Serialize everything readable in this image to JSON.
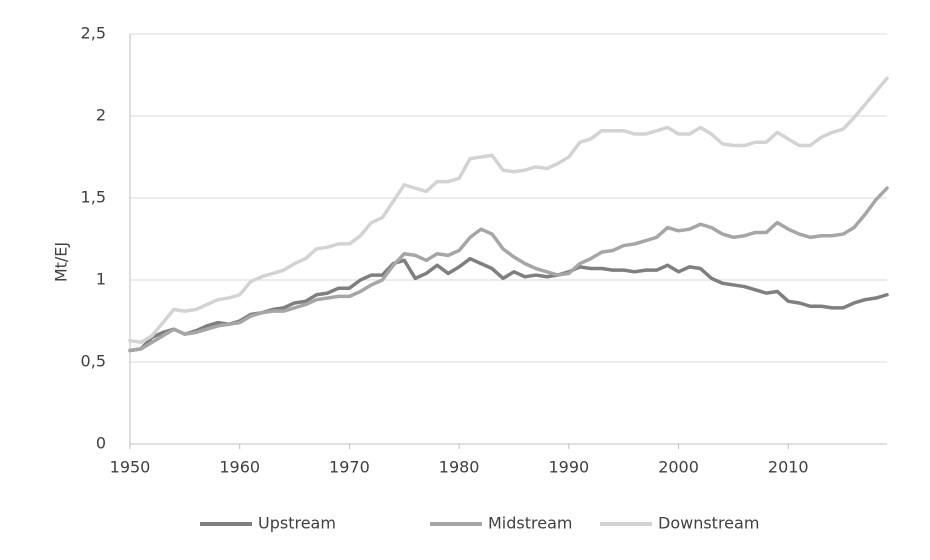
{
  "chart_data": {
    "type": "line",
    "y_label": "Mt/EJ",
    "x": [
      1950,
      1951,
      1952,
      1953,
      1954,
      1955,
      1956,
      1957,
      1958,
      1959,
      1960,
      1961,
      1962,
      1963,
      1964,
      1965,
      1966,
      1967,
      1968,
      1969,
      1970,
      1971,
      1972,
      1973,
      1974,
      1975,
      1976,
      1977,
      1978,
      1979,
      1980,
      1981,
      1982,
      1983,
      1984,
      1985,
      1986,
      1987,
      1988,
      1989,
      1990,
      1991,
      1992,
      1993,
      1994,
      1995,
      1996,
      1997,
      1998,
      1999,
      2000,
      2001,
      2002,
      2003,
      2004,
      2005,
      2006,
      2007,
      2008,
      2009,
      2010,
      2011,
      2012,
      2013,
      2014,
      2015,
      2016,
      2017,
      2018,
      2019
    ],
    "series": [
      {
        "name": "Upstream",
        "color": "#7f7f7f",
        "values": [
          0.57,
          0.58,
          0.65,
          0.68,
          0.7,
          0.67,
          0.69,
          0.72,
          0.74,
          0.73,
          0.75,
          0.79,
          0.8,
          0.82,
          0.83,
          0.86,
          0.87,
          0.91,
          0.92,
          0.95,
          0.95,
          1.0,
          1.03,
          1.03,
          1.1,
          1.12,
          1.01,
          1.04,
          1.09,
          1.04,
          1.08,
          1.13,
          1.1,
          1.07,
          1.01,
          1.05,
          1.02,
          1.03,
          1.02,
          1.03,
          1.05,
          1.08,
          1.07,
          1.07,
          1.06,
          1.06,
          1.05,
          1.06,
          1.06,
          1.09,
          1.05,
          1.08,
          1.07,
          1.01,
          0.98,
          0.97,
          0.96,
          0.94,
          0.92,
          0.93,
          0.87,
          0.86,
          0.84,
          0.84,
          0.83,
          0.83,
          0.86,
          0.88,
          0.89,
          0.91
        ]
      },
      {
        "name": "Midstream",
        "color": "#a6a6a6",
        "values": [
          0.57,
          0.58,
          0.62,
          0.66,
          0.7,
          0.67,
          0.68,
          0.7,
          0.72,
          0.73,
          0.74,
          0.78,
          0.8,
          0.81,
          0.81,
          0.83,
          0.85,
          0.88,
          0.89,
          0.9,
          0.9,
          0.93,
          0.97,
          1.0,
          1.09,
          1.16,
          1.15,
          1.12,
          1.16,
          1.15,
          1.18,
          1.26,
          1.31,
          1.28,
          1.19,
          1.14,
          1.1,
          1.07,
          1.05,
          1.03,
          1.04,
          1.1,
          1.13,
          1.17,
          1.18,
          1.21,
          1.22,
          1.24,
          1.26,
          1.32,
          1.3,
          1.31,
          1.34,
          1.32,
          1.28,
          1.26,
          1.27,
          1.29,
          1.29,
          1.35,
          1.31,
          1.28,
          1.26,
          1.27,
          1.27,
          1.28,
          1.32,
          1.4,
          1.49,
          1.56
        ]
      },
      {
        "name": "Downstream",
        "color": "#d3d3d3",
        "values": [
          0.63,
          0.62,
          0.66,
          0.74,
          0.82,
          0.81,
          0.82,
          0.85,
          0.88,
          0.89,
          0.91,
          0.99,
          1.02,
          1.04,
          1.06,
          1.1,
          1.13,
          1.19,
          1.2,
          1.22,
          1.22,
          1.27,
          1.35,
          1.38,
          1.48,
          1.58,
          1.56,
          1.54,
          1.6,
          1.6,
          1.62,
          1.74,
          1.75,
          1.76,
          1.67,
          1.66,
          1.67,
          1.69,
          1.68,
          1.71,
          1.75,
          1.84,
          1.86,
          1.91,
          1.91,
          1.91,
          1.89,
          1.89,
          1.91,
          1.93,
          1.89,
          1.89,
          1.93,
          1.89,
          1.83,
          1.82,
          1.82,
          1.84,
          1.84,
          1.9,
          1.86,
          1.82,
          1.82,
          1.87,
          1.9,
          1.92,
          1.99,
          2.07,
          2.15,
          2.23
        ]
      }
    ],
    "xlim": [
      1950,
      2019
    ],
    "xticks": [
      1950,
      1960,
      1970,
      1980,
      1990,
      2000,
      2010
    ],
    "ylim": [
      0,
      2.5
    ],
    "yticks": [
      0,
      {
        "value": 0.5,
        "label": "0,5"
      },
      1,
      {
        "value": 1.5,
        "label": "1,5"
      },
      2,
      {
        "value": 2.5,
        "label": "2,5"
      }
    ],
    "grid": true,
    "legend": "bottom"
  }
}
